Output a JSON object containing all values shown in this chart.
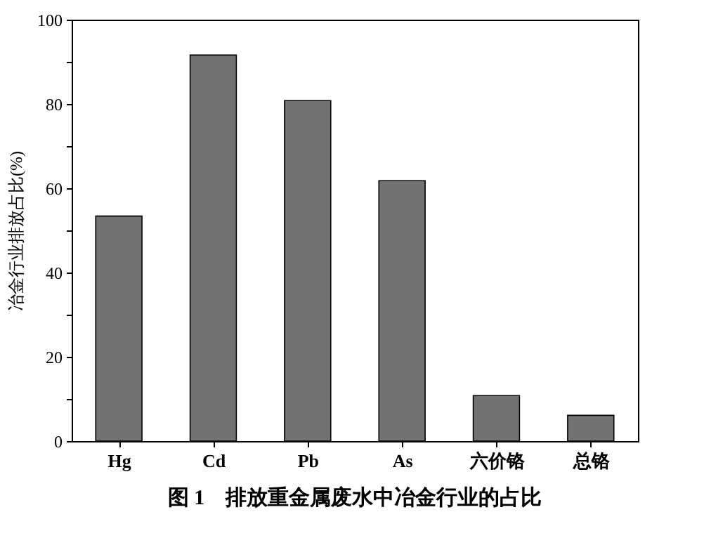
{
  "chart_data": {
    "type": "bar",
    "title": "图 1　排放重金属废水中冶金行业的占比",
    "ylabel": "冶金行业排放占比(%)",
    "categories": [
      "Hg",
      "Cd",
      "Pb",
      "As",
      "六价铬",
      "总铬"
    ],
    "values": [
      53.4,
      91.6,
      80.8,
      61.8,
      10.8,
      6.1
    ],
    "color": "#727272",
    "ylim": [
      0,
      100
    ],
    "yticks": [
      0,
      {
        "value": 10,
        "label": null
      },
      20,
      {
        "value": 30,
        "label": null
      },
      40,
      {
        "value": 50,
        "label": null
      },
      60,
      {
        "value": 70,
        "label": null
      },
      80,
      {
        "value": 90,
        "label": null
      },
      100
    ],
    "grid": false
  }
}
